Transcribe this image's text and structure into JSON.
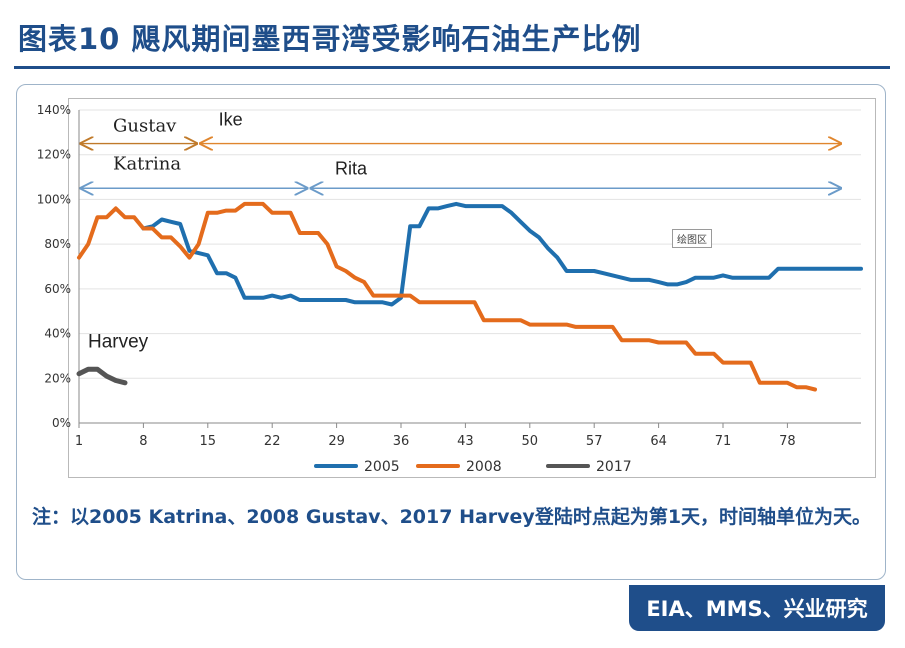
{
  "title": "图表10  飓风期间墨西哥湾受影响石油生产比例",
  "note": "注：以2005 Katrina、2008 Gustav、2017 Harvey登陆时点起为第1天，时间轴单位为天。",
  "source": "EIA、MMS、兴业研究",
  "plot_area_tag": "绘图区",
  "chart_data": {
    "type": "line",
    "x_ticks": [
      1,
      8,
      15,
      22,
      29,
      36,
      43,
      50,
      57,
      64,
      71,
      78
    ],
    "xlim": [
      1,
      86
    ],
    "ylim": [
      0,
      1.4
    ],
    "y_ticks": [
      0,
      0.2,
      0.4,
      0.6,
      0.8,
      1.0,
      1.2,
      1.4
    ],
    "y_tick_labels": [
      "0%",
      "20%",
      "40%",
      "60%",
      "80%",
      "100%",
      "120%",
      "140%"
    ],
    "grid": true,
    "legend_position": "bottom",
    "series": [
      {
        "name": "2005",
        "color": "#1f6fae",
        "points": [
          [
            8,
            0.87
          ],
          [
            9,
            0.88
          ],
          [
            10,
            0.91
          ],
          [
            11,
            0.9
          ],
          [
            12,
            0.89
          ],
          [
            13,
            0.77
          ],
          [
            14,
            0.76
          ],
          [
            15,
            0.75
          ],
          [
            16,
            0.67
          ],
          [
            17,
            0.67
          ],
          [
            18,
            0.65
          ],
          [
            19,
            0.56
          ],
          [
            20,
            0.56
          ],
          [
            21,
            0.56
          ],
          [
            22,
            0.57
          ],
          [
            23,
            0.56
          ],
          [
            24,
            0.57
          ],
          [
            25,
            0.55
          ],
          [
            26,
            0.55
          ],
          [
            27,
            0.55
          ],
          [
            28,
            0.55
          ],
          [
            29,
            0.55
          ],
          [
            30,
            0.55
          ],
          [
            31,
            0.54
          ],
          [
            32,
            0.54
          ],
          [
            33,
            0.54
          ],
          [
            34,
            0.54
          ],
          [
            35,
            0.53
          ],
          [
            36,
            0.56
          ],
          [
            37,
            0.88
          ],
          [
            38,
            0.88
          ],
          [
            39,
            0.96
          ],
          [
            40,
            0.96
          ],
          [
            41,
            0.97
          ],
          [
            42,
            0.98
          ],
          [
            43,
            0.97
          ],
          [
            44,
            0.97
          ],
          [
            45,
            0.97
          ],
          [
            46,
            0.97
          ],
          [
            47,
            0.97
          ],
          [
            48,
            0.94
          ],
          [
            49,
            0.9
          ],
          [
            50,
            0.86
          ],
          [
            51,
            0.83
          ],
          [
            52,
            0.78
          ],
          [
            53,
            0.74
          ],
          [
            54,
            0.68
          ],
          [
            55,
            0.68
          ],
          [
            56,
            0.68
          ],
          [
            57,
            0.68
          ],
          [
            58,
            0.67
          ],
          [
            59,
            0.66
          ],
          [
            60,
            0.65
          ],
          [
            61,
            0.64
          ],
          [
            62,
            0.64
          ],
          [
            63,
            0.64
          ],
          [
            64,
            0.63
          ],
          [
            65,
            0.62
          ],
          [
            66,
            0.62
          ],
          [
            67,
            0.63
          ],
          [
            68,
            0.65
          ],
          [
            69,
            0.65
          ],
          [
            70,
            0.65
          ],
          [
            71,
            0.66
          ],
          [
            72,
            0.65
          ],
          [
            73,
            0.65
          ],
          [
            74,
            0.65
          ],
          [
            75,
            0.65
          ],
          [
            76,
            0.65
          ],
          [
            77,
            0.69
          ],
          [
            78,
            0.69
          ],
          [
            79,
            0.69
          ],
          [
            80,
            0.69
          ],
          [
            81,
            0.69
          ],
          [
            82,
            0.69
          ],
          [
            83,
            0.69
          ],
          [
            84,
            0.69
          ],
          [
            85,
            0.69
          ],
          [
            86,
            0.69
          ]
        ]
      },
      {
        "name": "2008",
        "color": "#e46b1c",
        "points": [
          [
            1,
            0.74
          ],
          [
            2,
            0.8
          ],
          [
            3,
            0.92
          ],
          [
            4,
            0.92
          ],
          [
            5,
            0.96
          ],
          [
            6,
            0.92
          ],
          [
            7,
            0.92
          ],
          [
            8,
            0.87
          ],
          [
            9,
            0.87
          ],
          [
            10,
            0.83
          ],
          [
            11,
            0.83
          ],
          [
            12,
            0.79
          ],
          [
            13,
            0.74
          ],
          [
            14,
            0.8
          ],
          [
            15,
            0.94
          ],
          [
            16,
            0.94
          ],
          [
            17,
            0.95
          ],
          [
            18,
            0.95
          ],
          [
            19,
            0.98
          ],
          [
            20,
            0.98
          ],
          [
            21,
            0.98
          ],
          [
            22,
            0.94
          ],
          [
            23,
            0.94
          ],
          [
            24,
            0.94
          ],
          [
            25,
            0.85
          ],
          [
            26,
            0.85
          ],
          [
            27,
            0.85
          ],
          [
            28,
            0.8
          ],
          [
            29,
            0.7
          ],
          [
            30,
            0.68
          ],
          [
            31,
            0.65
          ],
          [
            32,
            0.63
          ],
          [
            33,
            0.57
          ],
          [
            34,
            0.57
          ],
          [
            35,
            0.57
          ],
          [
            36,
            0.57
          ],
          [
            37,
            0.57
          ],
          [
            38,
            0.54
          ],
          [
            39,
            0.54
          ],
          [
            40,
            0.54
          ],
          [
            41,
            0.54
          ],
          [
            42,
            0.54
          ],
          [
            43,
            0.54
          ],
          [
            44,
            0.54
          ],
          [
            45,
            0.46
          ],
          [
            46,
            0.46
          ],
          [
            47,
            0.46
          ],
          [
            48,
            0.46
          ],
          [
            49,
            0.46
          ],
          [
            50,
            0.44
          ],
          [
            51,
            0.44
          ],
          [
            52,
            0.44
          ],
          [
            53,
            0.44
          ],
          [
            54,
            0.44
          ],
          [
            55,
            0.43
          ],
          [
            56,
            0.43
          ],
          [
            57,
            0.43
          ],
          [
            58,
            0.43
          ],
          [
            59,
            0.43
          ],
          [
            60,
            0.37
          ],
          [
            61,
            0.37
          ],
          [
            62,
            0.37
          ],
          [
            63,
            0.37
          ],
          [
            64,
            0.36
          ],
          [
            65,
            0.36
          ],
          [
            66,
            0.36
          ],
          [
            67,
            0.36
          ],
          [
            68,
            0.31
          ],
          [
            69,
            0.31
          ],
          [
            70,
            0.31
          ],
          [
            71,
            0.27
          ],
          [
            72,
            0.27
          ],
          [
            73,
            0.27
          ],
          [
            74,
            0.27
          ],
          [
            75,
            0.18
          ],
          [
            76,
            0.18
          ],
          [
            77,
            0.18
          ],
          [
            78,
            0.18
          ],
          [
            79,
            0.16
          ],
          [
            80,
            0.16
          ],
          [
            81,
            0.15
          ]
        ]
      },
      {
        "name": "2017",
        "color": "#555555",
        "points": [
          [
            1,
            0.22
          ],
          [
            2,
            0.24
          ],
          [
            3,
            0.24
          ],
          [
            4,
            0.21
          ],
          [
            5,
            0.19
          ],
          [
            6,
            0.18
          ]
        ]
      }
    ],
    "annotations": [
      {
        "label": "Gustav",
        "color": "#c07a2a",
        "x_start": 1,
        "x_end": 14,
        "y": 1.25
      },
      {
        "label": "Ike",
        "color": "#e0862e",
        "x_start": 14,
        "x_end": 84,
        "y": 1.25
      },
      {
        "label": "Katrina",
        "color": "#6b9bc9",
        "x_start": 1,
        "x_end": 26,
        "y": 1.05
      },
      {
        "label": "Rita",
        "color": "#6b9bc9",
        "x_start": 26,
        "x_end": 84,
        "y": 1.05
      },
      {
        "label": "Harvey",
        "x": 1,
        "y": 0.32
      }
    ]
  }
}
